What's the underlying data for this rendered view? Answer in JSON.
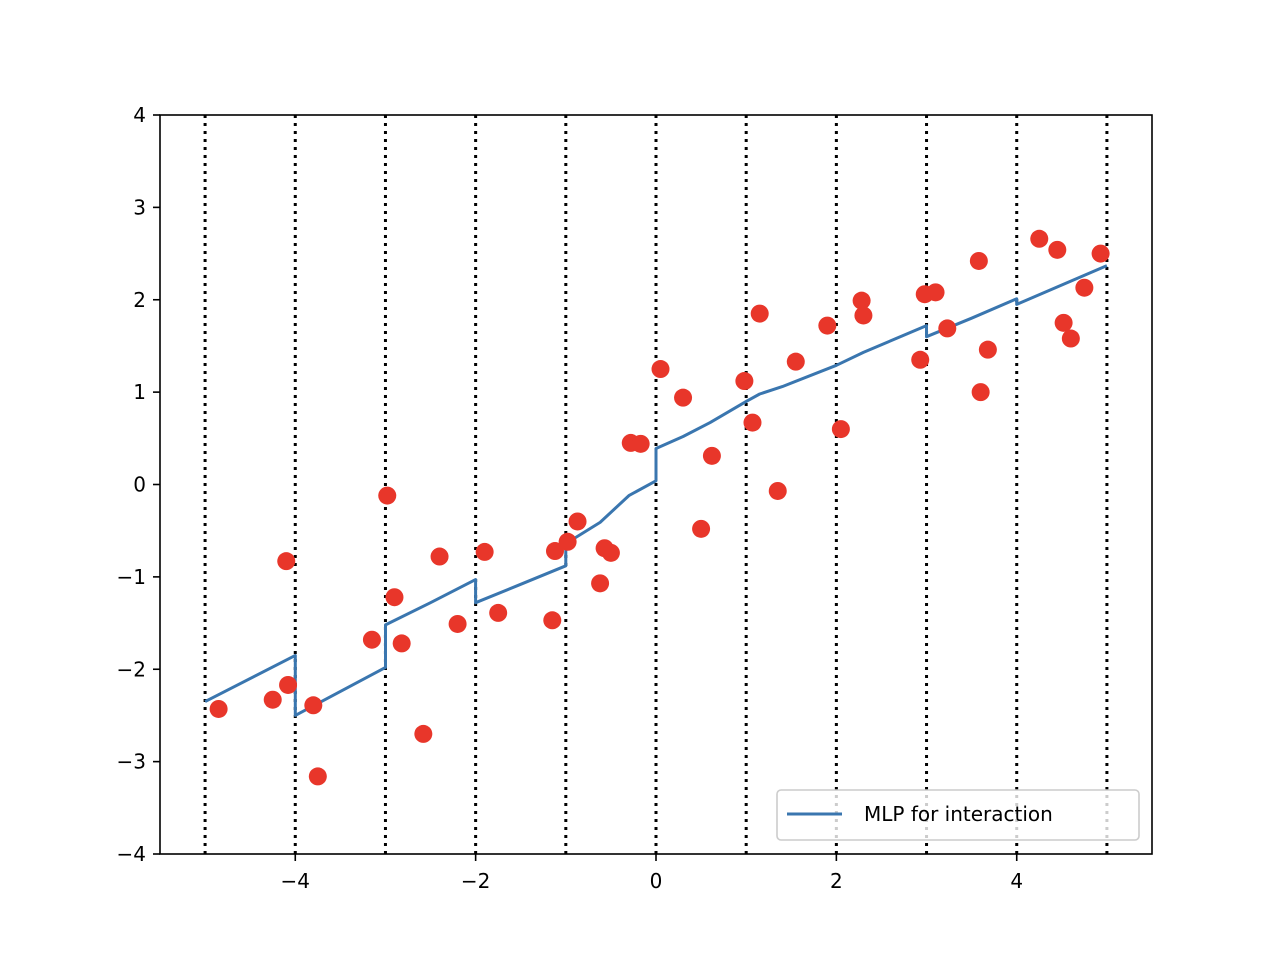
{
  "chart_data": {
    "type": "scatter",
    "title": "",
    "xlabel": "",
    "ylabel": "",
    "xlim": [
      -5.5,
      5.5
    ],
    "ylim": [
      -4,
      4
    ],
    "x_ticks": [
      -4,
      -2,
      0,
      2,
      4
    ],
    "x_tick_labels": [
      "−4",
      "−2",
      "0",
      "2",
      "4"
    ],
    "y_ticks": [
      -4,
      -3,
      -2,
      -1,
      0,
      1,
      2,
      3,
      4
    ],
    "y_tick_labels": [
      "−4",
      "−3",
      "−2",
      "−1",
      "0",
      "1",
      "2",
      "3",
      "4"
    ],
    "grid": false,
    "vertical_reference_lines": {
      "x": [
        -5,
        -4,
        -3,
        -2,
        -1,
        0,
        1,
        2,
        3,
        4,
        5
      ],
      "style": "dotted",
      "color": "#000000"
    },
    "series": [
      {
        "name": "MLP for interaction",
        "kind": "line",
        "color": "#3a76af",
        "x": [
          -5,
          -4,
          -4,
          -3,
          -3,
          -2.5,
          -2,
          -2,
          -1.5,
          -1,
          -1,
          -0.62,
          -0.3,
          0,
          0,
          0.3,
          0.6,
          1.0,
          1.15,
          1.4,
          2.0,
          2.3,
          3,
          3,
          3.5,
          4,
          4,
          5
        ],
        "y": [
          -2.35,
          -1.85,
          -2.5,
          -1.98,
          -1.52,
          -1.28,
          -1.03,
          -1.28,
          -1.08,
          -0.88,
          -0.64,
          -0.41,
          -0.12,
          0.04,
          0.39,
          0.52,
          0.67,
          0.9,
          0.98,
          1.06,
          1.29,
          1.43,
          1.72,
          1.6,
          1.8,
          2.01,
          1.95,
          2.37
        ]
      },
      {
        "name": "",
        "kind": "scatter",
        "color": "#e8362a",
        "points": [
          [
            -4.85,
            -2.43
          ],
          [
            -4.25,
            -2.33
          ],
          [
            -4.1,
            -0.83
          ],
          [
            -4.08,
            -2.17
          ],
          [
            -3.8,
            -2.39
          ],
          [
            -3.75,
            -3.16
          ],
          [
            -3.15,
            -1.68
          ],
          [
            -2.98,
            -0.12
          ],
          [
            -2.9,
            -1.22
          ],
          [
            -2.82,
            -1.72
          ],
          [
            -2.58,
            -2.7
          ],
          [
            -2.4,
            -0.78
          ],
          [
            -2.2,
            -1.51
          ],
          [
            -1.9,
            -0.73
          ],
          [
            -1.75,
            -1.39
          ],
          [
            -1.15,
            -1.47
          ],
          [
            -1.12,
            -0.72
          ],
          [
            -0.98,
            -0.62
          ],
          [
            -0.87,
            -0.4
          ],
          [
            -0.62,
            -1.07
          ],
          [
            -0.57,
            -0.69
          ],
          [
            -0.5,
            -0.74
          ],
          [
            -0.28,
            0.45
          ],
          [
            -0.17,
            0.44
          ],
          [
            0.05,
            1.25
          ],
          [
            0.3,
            0.94
          ],
          [
            0.5,
            -0.48
          ],
          [
            0.62,
            0.31
          ],
          [
            0.98,
            1.12
          ],
          [
            1.07,
            0.67
          ],
          [
            1.15,
            1.85
          ],
          [
            1.35,
            -0.07
          ],
          [
            1.55,
            1.33
          ],
          [
            1.9,
            1.72
          ],
          [
            2.05,
            0.6
          ],
          [
            2.28,
            1.99
          ],
          [
            2.3,
            1.83
          ],
          [
            2.93,
            1.35
          ],
          [
            2.98,
            2.06
          ],
          [
            3.1,
            2.08
          ],
          [
            3.23,
            1.69
          ],
          [
            3.58,
            2.42
          ],
          [
            3.6,
            1.0
          ],
          [
            3.68,
            1.46
          ],
          [
            4.25,
            2.66
          ],
          [
            4.45,
            2.54
          ],
          [
            4.52,
            1.75
          ],
          [
            4.6,
            1.58
          ],
          [
            4.75,
            2.13
          ],
          [
            4.93,
            2.5
          ]
        ]
      }
    ],
    "legend": {
      "position": "lower-right",
      "entries": [
        "MLP for interaction"
      ]
    }
  }
}
